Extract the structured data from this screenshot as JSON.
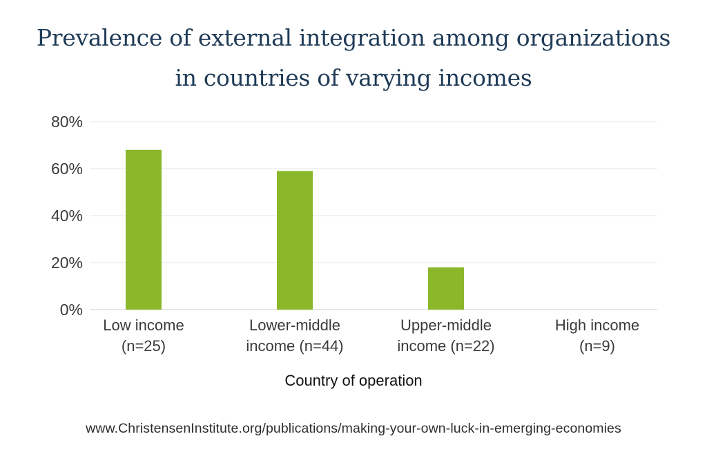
{
  "title_lines": [
    "Prevalence of external integration among organizations",
    "in countries of varying incomes"
  ],
  "footer": {
    "url": "www.ChristensenInstitute.org/publications/making-your-own-luck-in-emerging-economies"
  },
  "colors": {
    "bar": "#8ab82a",
    "grid": "#e6e6e6",
    "title": "#1f3b57"
  },
  "chart_data": {
    "type": "bar",
    "title": "Prevalence of external integration among organizations in countries of varying incomes",
    "xlabel": "Country of operation",
    "ylabel": "",
    "categories": [
      [
        "Low income",
        "(n=25)"
      ],
      [
        "Lower-middle",
        "income (n=44)"
      ],
      [
        "Upper-middle",
        "income (n=22)"
      ],
      [
        "High income",
        "(n=9)"
      ]
    ],
    "values": [
      68,
      59,
      18,
      0
    ],
    "ylim": [
      0,
      80
    ],
    "yticks": [
      0,
      20,
      40,
      60,
      80
    ],
    "ytick_labels": [
      "0%",
      "20%",
      "40%",
      "60%",
      "80%"
    ],
    "grid": true,
    "legend": "none"
  }
}
